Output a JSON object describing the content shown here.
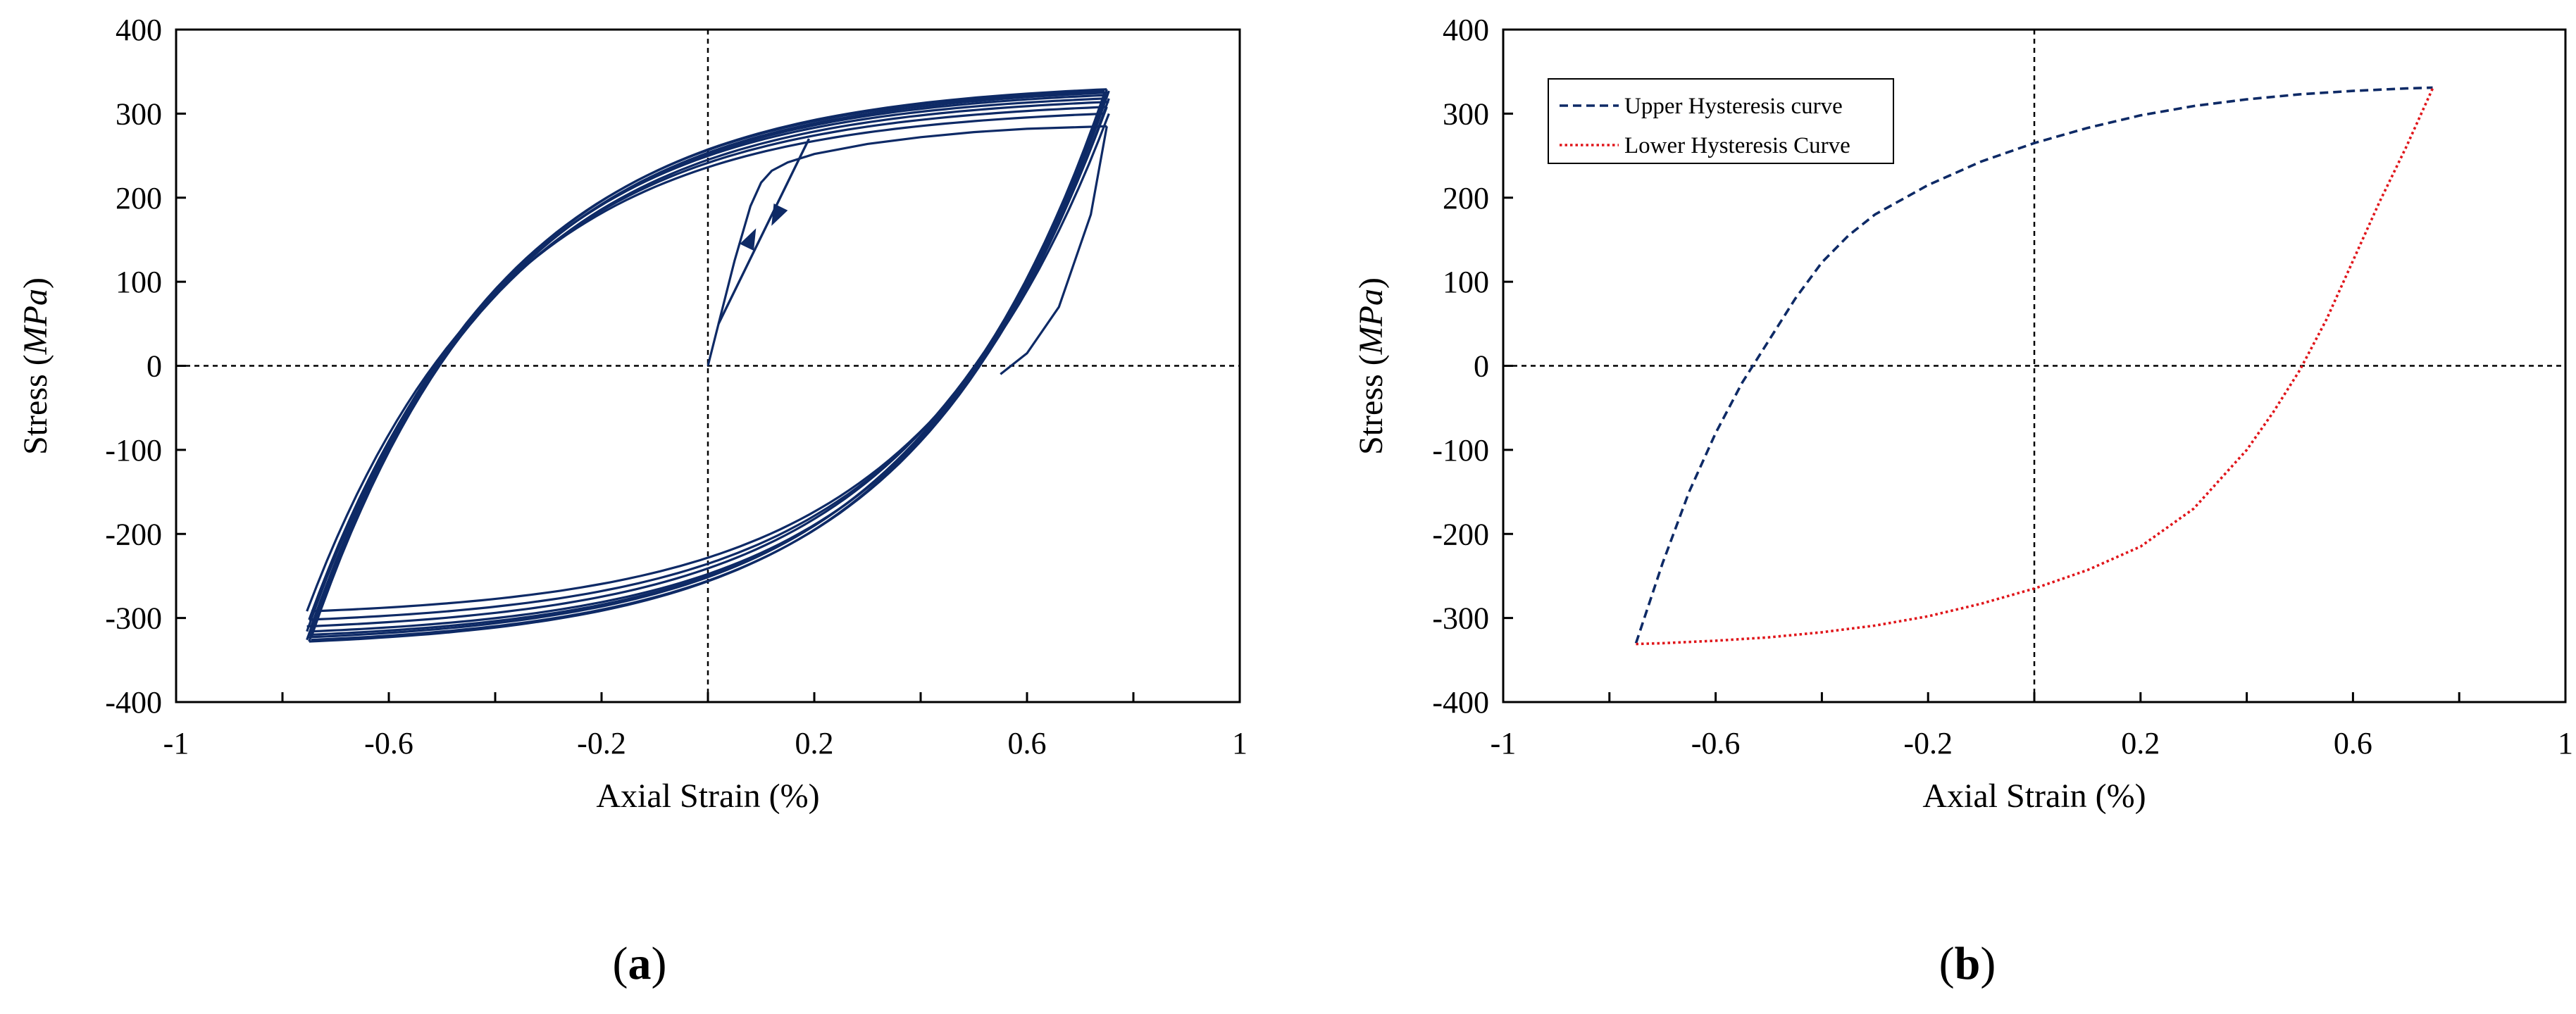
{
  "chart_data": [
    {
      "id": "a",
      "type": "line",
      "panel_label": "a",
      "xlabel": "Axial Strain (%)",
      "ylabel_prefix": "Stress (",
      "ylabel_unit": "MPa",
      "ylabel_suffix": ")",
      "xlim": [
        -1,
        1
      ],
      "ylim": [
        -400,
        400
      ],
      "xticks": [
        -1,
        -0.6,
        -0.2,
        0.2,
        0.6,
        1
      ],
      "xtick_labels": [
        "-1",
        "-0.6",
        "-0.2",
        "0.2",
        "0.6",
        "1"
      ],
      "yticks": [
        -400,
        -300,
        -200,
        -100,
        0,
        100,
        200,
        300,
        400
      ],
      "ytick_labels": [
        "-400",
        "-300",
        "-200",
        "-100",
        "0",
        "100",
        "200",
        "300",
        "400"
      ],
      "reference_lines": {
        "x": 0,
        "y": 0,
        "style": "dashed"
      },
      "color": "#0e2a66",
      "initial_loading": {
        "x": [
          0,
          0.02,
          0.05,
          0.08,
          0.1,
          0.12,
          0.15,
          0.2,
          0.3,
          0.4,
          0.5,
          0.6,
          0.7,
          0.75
        ],
        "y": [
          0,
          50,
          125,
          190,
          218,
          232,
          242,
          252,
          264,
          272,
          278,
          282,
          284,
          285
        ]
      },
      "first_unloading": {
        "x": [
          0.75,
          0.72,
          0.66,
          0.6,
          0.55
        ],
        "y": [
          285,
          180,
          70,
          15,
          -10
        ]
      },
      "arrows": [
        {
          "x": [
            0.02,
            0.19
          ],
          "y": [
            50,
            270
          ],
          "direction": "down",
          "at": [
            0.13,
            180
          ]
        },
        {
          "x": [
            0.02,
            0.19
          ],
          "y": [
            50,
            270
          ],
          "direction": "up",
          "at": [
            0.08,
            150
          ]
        }
      ],
      "hysteresis_cycles": [
        {
          "amp_top": 300,
          "amp_bottom": -292
        },
        {
          "amp_top": 308,
          "amp_bottom": -302
        },
        {
          "amp_top": 314,
          "amp_bottom": -310
        },
        {
          "amp_top": 318,
          "amp_bottom": -316
        },
        {
          "amp_top": 322,
          "amp_bottom": -320
        },
        {
          "amp_top": 325,
          "amp_bottom": -323
        },
        {
          "amp_top": 327,
          "amp_bottom": -326
        },
        {
          "amp_top": 329,
          "amp_bottom": -328
        }
      ],
      "strain_amplitude": 0.75
    },
    {
      "id": "b",
      "type": "line",
      "panel_label": "b",
      "xlabel": "Axial Strain (%)",
      "ylabel_prefix": "Stress (",
      "ylabel_unit": "MPa",
      "ylabel_suffix": ")",
      "xlim": [
        -1,
        1
      ],
      "ylim": [
        -400,
        400
      ],
      "xticks": [
        -1,
        -0.6,
        -0.2,
        0.2,
        0.6,
        1
      ],
      "xtick_labels": [
        "-1",
        "-0.6",
        "-0.2",
        "0.2",
        "0.6",
        "1"
      ],
      "yticks": [
        -400,
        -300,
        -200,
        -100,
        0,
        100,
        200,
        300,
        400
      ],
      "ytick_labels": [
        "-400",
        "-300",
        "-200",
        "-100",
        "0",
        "100",
        "200",
        "300",
        "400"
      ],
      "reference_lines": {
        "x": 0,
        "y": 0,
        "style": "dashed"
      },
      "legend_position": "top-left",
      "series": [
        {
          "name": "Upper Hysteresis curve",
          "color": "#0e2a66",
          "style": "dashed",
          "x": [
            -0.75,
            -0.7,
            -0.65,
            -0.6,
            -0.55,
            -0.5,
            -0.45,
            -0.4,
            -0.35,
            -0.3,
            -0.2,
            -0.1,
            0,
            0.1,
            0.2,
            0.3,
            0.4,
            0.5,
            0.6,
            0.7,
            0.75
          ],
          "y": [
            -330,
            -235,
            -150,
            -80,
            -20,
            30,
            80,
            123,
            155,
            180,
            215,
            243,
            265,
            283,
            298,
            309,
            317,
            323,
            327,
            330,
            331
          ]
        },
        {
          "name": "Lower Hysteresis Curve",
          "color": "#e0151a",
          "style": "dotted",
          "x": [
            -0.75,
            -0.7,
            -0.6,
            -0.5,
            -0.4,
            -0.3,
            -0.2,
            -0.1,
            0,
            0.1,
            0.2,
            0.3,
            0.4,
            0.45,
            0.5,
            0.55,
            0.6,
            0.65,
            0.7,
            0.75
          ],
          "y": [
            -331,
            -330,
            -327,
            -323,
            -317,
            -309,
            -298,
            -283,
            -265,
            -243,
            -215,
            -170,
            -100,
            -55,
            -5,
            55,
            125,
            195,
            260,
            330
          ]
        }
      ]
    }
  ]
}
